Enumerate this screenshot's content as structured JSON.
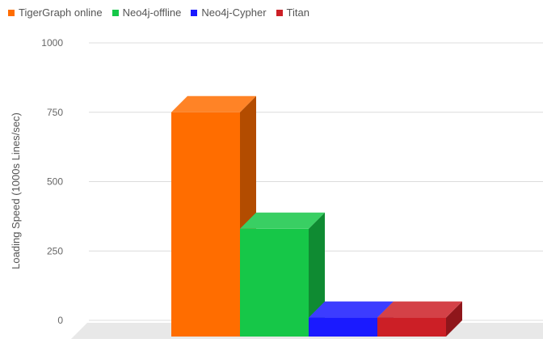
{
  "chart_data": {
    "type": "bar",
    "style": "3d",
    "ylabel": "Loading Speed (1000s Lines/sec)",
    "ylim": [
      0,
      1000
    ],
    "yticks": [
      0,
      250,
      500,
      750,
      1000
    ],
    "grid": true,
    "legend_position": "top-left",
    "series": [
      {
        "name": "TigerGraph online",
        "value": 750,
        "color": "#ff6d00"
      },
      {
        "name": "Neo4j-offline",
        "value": 330,
        "color": "#16c748"
      },
      {
        "name": "Neo4j-Cypher",
        "value": 10,
        "color": "#1a1aff"
      },
      {
        "name": "Titan",
        "value": 10,
        "color": "#cc1f26"
      }
    ]
  }
}
